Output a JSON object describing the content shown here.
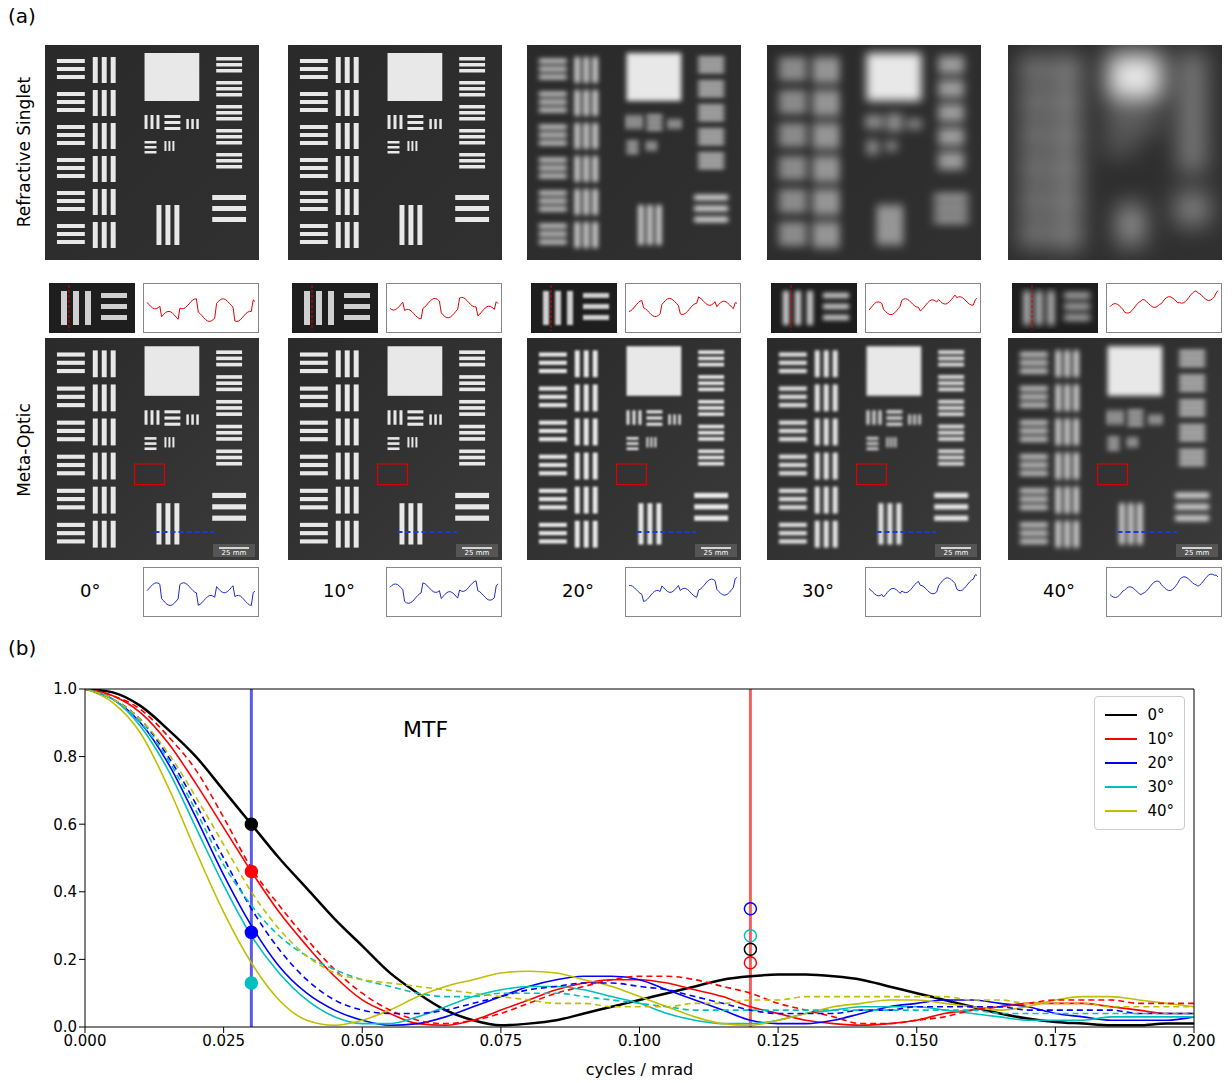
{
  "figure": {
    "panel_labels": [
      "(a)",
      "(b)"
    ],
    "row_labels": [
      "Refractive Singlet",
      "Meta-Optic"
    ],
    "angles": [
      "0°",
      "10°",
      "20°",
      "30°",
      "40°"
    ],
    "scale_bar": "25 mm"
  },
  "chart_data": {
    "type": "line",
    "annotation": "MTF",
    "x_label": "cycles / mrad",
    "x": [
      0,
      0.005,
      0.01,
      0.015,
      0.02,
      0.025,
      0.03,
      0.035,
      0.04,
      0.045,
      0.05,
      0.055,
      0.06,
      0.065,
      0.07,
      0.075,
      0.08,
      0.085,
      0.09,
      0.095,
      0.1,
      0.105,
      0.11,
      0.115,
      0.12,
      0.125,
      0.13,
      0.135,
      0.14,
      0.145,
      0.15,
      0.155,
      0.16,
      0.165,
      0.17,
      0.175,
      0.18,
      0.185,
      0.19,
      0.195,
      0.2
    ],
    "xlim": [
      0,
      0.2
    ],
    "xticks": [
      {
        "value": 0,
        "label": "0.000"
      },
      {
        "value": 0.025,
        "label": "0.025"
      },
      {
        "value": 0.05,
        "label": "0.050"
      },
      {
        "value": 0.075,
        "label": "0.075"
      },
      {
        "value": 0.1,
        "label": "0.100"
      },
      {
        "value": 0.125,
        "label": "0.125"
      },
      {
        "value": 0.15,
        "label": "0.150"
      },
      {
        "value": 0.175,
        "label": "0.175"
      },
      {
        "value": 0.2,
        "label": "0.200"
      }
    ],
    "ylim": [
      0,
      1
    ],
    "yticks": [
      {
        "value": 0,
        "label": "0.0"
      },
      {
        "value": 0.2,
        "label": "0.2"
      },
      {
        "value": 0.4,
        "label": "0.4"
      },
      {
        "value": 0.6,
        "label": "0.6"
      },
      {
        "value": 0.8,
        "label": "0.8"
      },
      {
        "value": 1,
        "label": "1.0"
      }
    ],
    "grid": false,
    "legend": "upper right",
    "series": [
      {
        "name": "0°",
        "color": "#000000",
        "line_style": "solid",
        "values": [
          1.0,
          0.99,
          0.95,
          0.88,
          0.8,
          0.7,
          0.6,
          0.5,
          0.41,
          0.32,
          0.24,
          0.16,
          0.1,
          0.05,
          0.02,
          0.005,
          0.01,
          0.02,
          0.04,
          0.06,
          0.08,
          0.1,
          0.12,
          0.14,
          0.15,
          0.155,
          0.155,
          0.15,
          0.14,
          0.12,
          0.1,
          0.08,
          0.06,
          0.04,
          0.025,
          0.015,
          0.01,
          0.005,
          0.005,
          0.01,
          0.01
        ]
      },
      {
        "name": "10°",
        "color": "#ff0000",
        "line_style": "solid",
        "values": [
          1,
          0.98,
          0.93,
          0.84,
          0.72,
          0.59,
          0.46,
          0.34,
          0.24,
          0.15,
          0.08,
          0.04,
          0.01,
          0.005,
          0.02,
          0.05,
          0.08,
          0.11,
          0.13,
          0.14,
          0.14,
          0.13,
          0.11,
          0.09,
          0.06,
          0.04,
          0.02,
          0.01,
          0.005,
          0.01,
          0.02,
          0.04,
          0.05,
          0.06,
          0.07,
          0.07,
          0.07,
          0.06,
          0.05,
          0.04,
          0.04
        ]
      },
      {
        "name": "20°",
        "color": "#0000ff",
        "line_style": "solid",
        "values": [
          1,
          0.97,
          0.9,
          0.78,
          0.62,
          0.45,
          0.3,
          0.18,
          0.1,
          0.05,
          0.02,
          0.005,
          0.01,
          0.03,
          0.06,
          0.09,
          0.12,
          0.14,
          0.15,
          0.15,
          0.14,
          0.11,
          0.08,
          0.05,
          0.02,
          0.01,
          0.01,
          0.02,
          0.04,
          0.06,
          0.07,
          0.08,
          0.08,
          0.07,
          0.06,
          0.04,
          0.03,
          0.02,
          0.02,
          0.02,
          0.03
        ]
      },
      {
        "name": "30°",
        "color": "#00bfbf",
        "line_style": "solid",
        "values": [
          1,
          0.97,
          0.89,
          0.76,
          0.59,
          0.42,
          0.27,
          0.16,
          0.08,
          0.03,
          0.01,
          0.01,
          0.03,
          0.06,
          0.09,
          0.11,
          0.12,
          0.12,
          0.11,
          0.09,
          0.07,
          0.04,
          0.02,
          0.01,
          0.01,
          0.02,
          0.04,
          0.05,
          0.06,
          0.06,
          0.06,
          0.05,
          0.04,
          0.03,
          0.02,
          0.02,
          0.02,
          0.03,
          0.03,
          0.03,
          0.03
        ]
      },
      {
        "name": "40°",
        "color": "#bfbf00",
        "line_style": "solid",
        "values": [
          1,
          0.96,
          0.87,
          0.71,
          0.52,
          0.34,
          0.19,
          0.08,
          0.02,
          0.005,
          0.02,
          0.05,
          0.09,
          0.12,
          0.14,
          0.16,
          0.165,
          0.16,
          0.14,
          0.12,
          0.09,
          0.06,
          0.03,
          0.01,
          0.005,
          0.02,
          0.04,
          0.06,
          0.07,
          0.08,
          0.08,
          0.07,
          0.06,
          0.05,
          0.06,
          0.08,
          0.09,
          0.09,
          0.08,
          0.07,
          0.06
        ]
      },
      {
        "color": "#ff0000",
        "line_style": "dashed",
        "values": [
          1,
          0.98,
          0.94,
          0.86,
          0.76,
          0.62,
          0.47,
          0.36,
          0.26,
          0.17,
          0.1,
          0.05,
          0.02,
          0.01,
          0.02,
          0.04,
          0.07,
          0.1,
          0.12,
          0.14,
          0.15,
          0.15,
          0.14,
          0.12,
          0.1,
          0.07,
          0.05,
          0.03,
          0.01,
          0.01,
          0.02,
          0.03,
          0.05,
          0.06,
          0.07,
          0.08,
          0.08,
          0.08,
          0.07,
          0.07,
          0.07
        ]
      },
      {
        "color": "#0000ff",
        "line_style": "dashed",
        "values": [
          1,
          0.97,
          0.91,
          0.8,
          0.66,
          0.5,
          0.35,
          0.23,
          0.14,
          0.08,
          0.05,
          0.04,
          0.04,
          0.05,
          0.07,
          0.09,
          0.11,
          0.12,
          0.13,
          0.13,
          0.12,
          0.11,
          0.09,
          0.07,
          0.05,
          0.04,
          0.04,
          0.04,
          0.05,
          0.05,
          0.06,
          0.06,
          0.06,
          0.06,
          0.05,
          0.05,
          0.05,
          0.05,
          0.04,
          0.04,
          0.04
        ]
      },
      {
        "color": "#00bfbf",
        "line_style": "dashed",
        "values": [
          1,
          0.97,
          0.9,
          0.79,
          0.64,
          0.48,
          0.36,
          0.27,
          0.21,
          0.17,
          0.14,
          0.12,
          0.1,
          0.09,
          0.09,
          0.1,
          0.1,
          0.1,
          0.09,
          0.08,
          0.07,
          0.06,
          0.05,
          0.05,
          0.05,
          0.05,
          0.05,
          0.05,
          0.05,
          0.05,
          0.05,
          0.05,
          0.05,
          0.04,
          0.04,
          0.04,
          0.04,
          0.04,
          0.04,
          0.04,
          0.04
        ]
      },
      {
        "color": "#bfbf00",
        "line_style": "dashed",
        "values": [
          1,
          0.97,
          0.91,
          0.81,
          0.68,
          0.54,
          0.4,
          0.29,
          0.21,
          0.16,
          0.14,
          0.13,
          0.12,
          0.11,
          0.1,
          0.09,
          0.08,
          0.07,
          0.07,
          0.06,
          0.06,
          0.06,
          0.07,
          0.07,
          0.08,
          0.08,
          0.09,
          0.09,
          0.09,
          0.09,
          0.09,
          0.09,
          0.08,
          0.08,
          0.07,
          0.07,
          0.07,
          0.06,
          0.06,
          0.06,
          0.06
        ]
      }
    ],
    "reference_lines": [
      {
        "x": 0.03,
        "color": "#5a5af0"
      },
      {
        "x": 0.12,
        "color": "#f06060"
      }
    ],
    "points": [
      {
        "x": 0.03,
        "y": 0.6,
        "color": "#000000",
        "marker": "filled"
      },
      {
        "x": 0.03,
        "y": 0.46,
        "color": "#ff0000",
        "marker": "filled"
      },
      {
        "x": 0.03,
        "y": 0.28,
        "color": "#0000ff",
        "marker": "filled"
      },
      {
        "x": 0.03,
        "y": 0.13,
        "color": "#00bfbf",
        "marker": "filled"
      },
      {
        "x": 0.12,
        "y": 0.35,
        "color": "#0000ff",
        "marker": "hollow"
      },
      {
        "x": 0.12,
        "y": 0.27,
        "color": "#00bfbf",
        "marker": "hollow"
      },
      {
        "x": 0.12,
        "y": 0.23,
        "color": "#000000",
        "marker": "hollow"
      },
      {
        "x": 0.12,
        "y": 0.19,
        "color": "#ff0000",
        "marker": "hollow"
      }
    ]
  }
}
